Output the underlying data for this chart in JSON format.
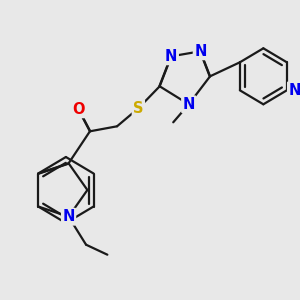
{
  "bg_color": "#e8e8e8",
  "bond_color": "#1a1a1a",
  "n_color": "#0000ee",
  "o_color": "#ee0000",
  "s_color": "#ccaa00",
  "lw": 1.6,
  "dbo": 0.018,
  "fs": 10.5
}
